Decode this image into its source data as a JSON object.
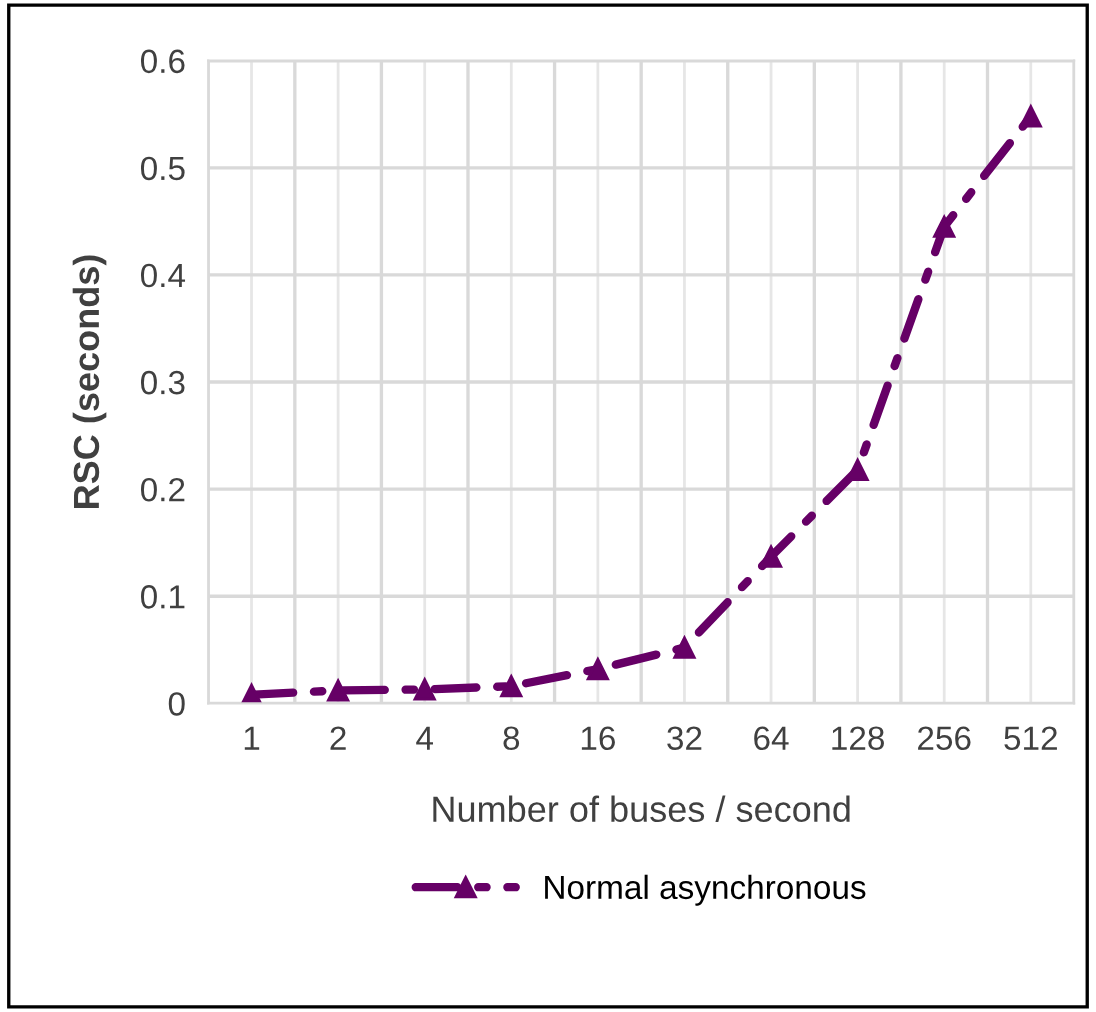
{
  "chart_data": {
    "type": "line",
    "xlabel": "Number of buses / second",
    "ylabel": "RSC (seconds)",
    "categories": [
      "1",
      "2",
      "4",
      "8",
      "16",
      "32",
      "64",
      "128",
      "256",
      "512"
    ],
    "series": [
      {
        "name": "Normal asynchronous",
        "color": "#660066",
        "values": [
          0.008,
          0.012,
          0.013,
          0.016,
          0.032,
          0.052,
          0.137,
          0.218,
          0.445,
          0.548
        ]
      }
    ],
    "ylim": [
      0,
      0.6
    ],
    "yticks": [
      0,
      0.1,
      0.2,
      0.3,
      0.4,
      0.5,
      0.6
    ],
    "grid": true,
    "legend": "bottom",
    "marker": "triangle",
    "line_style": "dashed"
  }
}
